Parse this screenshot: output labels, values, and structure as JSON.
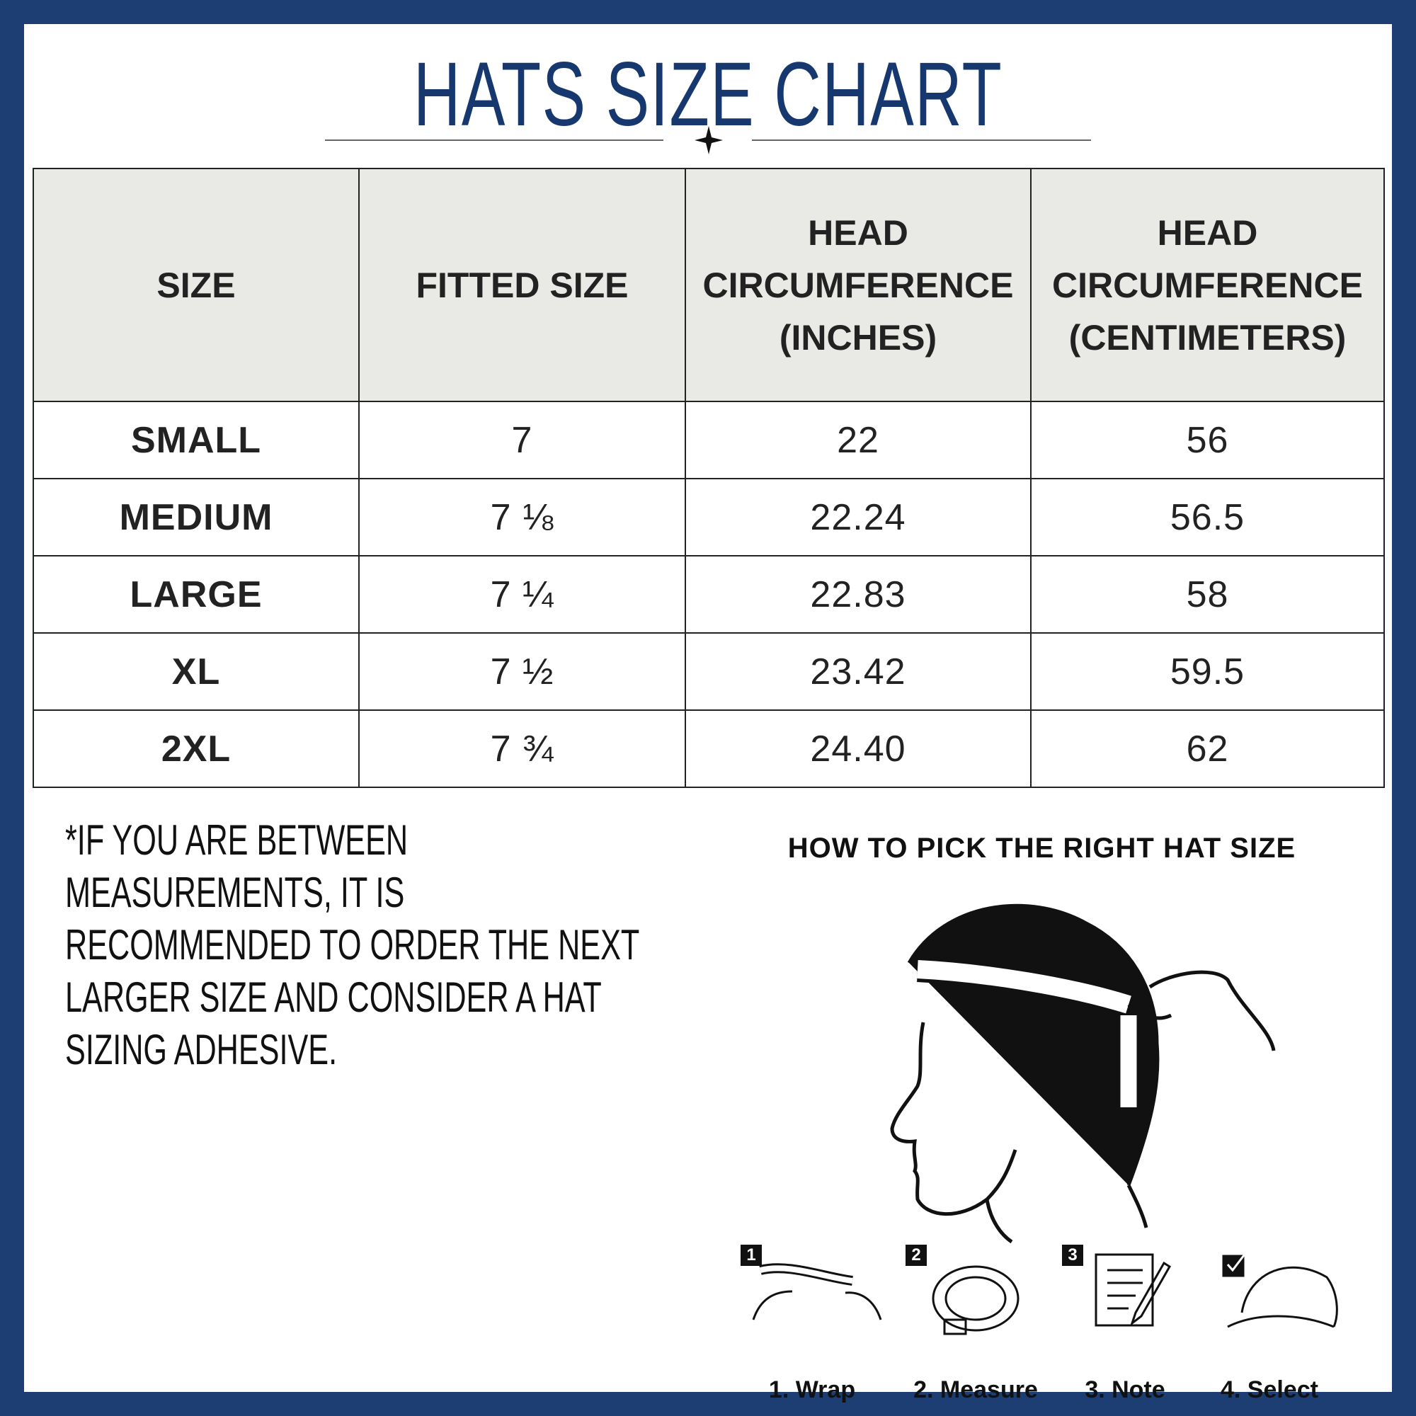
{
  "title": "HATS SIZE CHART",
  "table": {
    "header": [
      [
        "SIZE"
      ],
      [
        "FITTED SIZE"
      ],
      [
        "HEAD",
        "CIRCUMFERENCE",
        "(INCHES)"
      ],
      [
        "HEAD",
        "CIRCUMFERENCE",
        "(CENTIMETERS)"
      ]
    ],
    "rows": [
      [
        "SMALL",
        "7",
        "22",
        "56"
      ],
      [
        "MEDIUM",
        "7 ⅛",
        "22.24",
        "56.5"
      ],
      [
        "LARGE",
        "7 ¼",
        "22.83",
        "58"
      ],
      [
        "XL",
        "7 ½",
        "23.42",
        "59.5"
      ],
      [
        "2XL",
        "7 ¾",
        "24.40",
        "62"
      ]
    ]
  },
  "note": "*IF YOU ARE BETWEEN MEASUREMENTS, IT IS RECOMMENDED TO ORDER THE NEXT LARGER SIZE AND CONSIDER A HAT SIZING ADHESIVE.",
  "guide": {
    "title": "HOW TO PICK THE RIGHT HAT SIZE",
    "steps": [
      {
        "number": "1",
        "label": "1. Wrap"
      },
      {
        "number": "2",
        "label": "2. Measure"
      },
      {
        "number": "3",
        "label": "3. Note"
      },
      {
        "label": "4. Select"
      }
    ]
  }
}
